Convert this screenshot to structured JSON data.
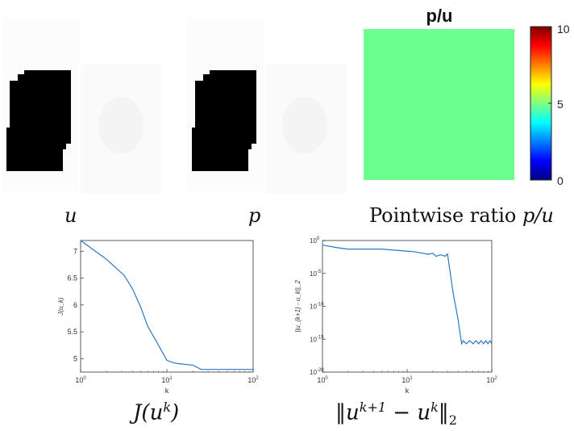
{
  "panels": {
    "u_caption": "u",
    "p_caption": "p",
    "ratio": {
      "title": "p/u",
      "caption_text": "Pointwise ratio ",
      "caption_math": "p/u",
      "fill_color": "#6cff8f",
      "colorbar_ticks": [
        "10",
        "5",
        "0"
      ],
      "ratio_value": 4.5,
      "colorbar_range": [
        0,
        10
      ]
    }
  },
  "colors": {
    "line": "#2a78c0",
    "shape": "#000000",
    "background": "#ffffff"
  },
  "chart_data": [
    {
      "type": "line",
      "title": "",
      "xlabel": "k",
      "ylabel": "J(u_k)",
      "xscale": "log",
      "xlim": [
        1,
        100
      ],
      "ylim": [
        4.75,
        7.2
      ],
      "xticks": [
        "10^0",
        "10^1",
        "10^2"
      ],
      "yticks": [
        "7",
        "6.5",
        "6",
        "5.5",
        "5"
      ],
      "caption": "J(u^k)",
      "series": [
        {
          "x": [
            1,
            2,
            3.2,
            4,
            5,
            6,
            8,
            10,
            12,
            15,
            20,
            25,
            30,
            40,
            50,
            70,
            100
          ],
          "values": [
            7.2,
            6.85,
            6.55,
            6.3,
            5.95,
            5.6,
            5.25,
            4.97,
            4.92,
            4.9,
            4.88,
            4.8,
            4.8,
            4.8,
            4.8,
            4.8,
            4.8
          ]
        }
      ]
    },
    {
      "type": "line",
      "title": "",
      "xlabel": "k",
      "ylabel": "||u_{k+1} - u_k||_2",
      "xscale": "log",
      "yscale": "log",
      "xlim": [
        1,
        100
      ],
      "ylim": [
        1e-20,
        1
      ],
      "xticks": [
        "10^0",
        "10^1",
        "10^2"
      ],
      "yticks": [
        "10^0",
        "10^-5",
        "10^-10",
        "10^-15",
        "10^-20"
      ],
      "caption": "||u^{k+1} - u^k||_2",
      "series": [
        {
          "x": [
            1,
            1.5,
            2,
            3,
            5,
            8,
            12,
            18,
            20,
            22,
            25,
            28,
            30,
            35,
            40,
            44,
            46,
            50,
            55,
            60,
            65,
            70,
            75,
            80,
            85,
            90,
            95,
            100
          ],
          "values": [
            0.2,
            0.08,
            0.05,
            0.05,
            0.05,
            0.03,
            0.02,
            0.008,
            0.012,
            0.004,
            0.007,
            0.004,
            0.009,
            1e-08,
            1e-12,
            2e-16,
            6e-16,
            2e-16,
            6e-16,
            2e-16,
            6e-16,
            2e-16,
            6e-16,
            2e-16,
            6e-16,
            2e-16,
            6e-16,
            2e-16
          ]
        }
      ]
    }
  ]
}
